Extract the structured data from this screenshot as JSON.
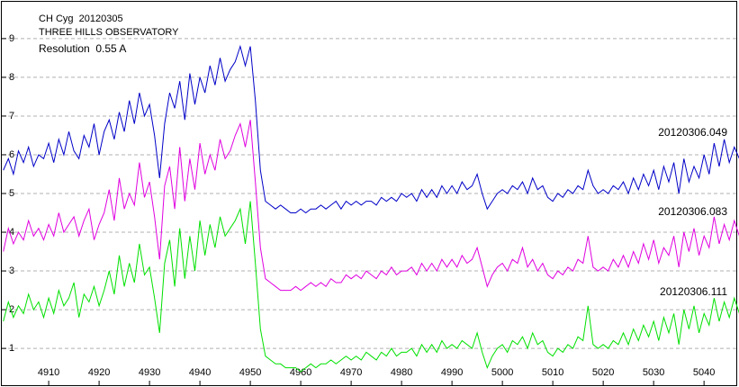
{
  "chart_data": {
    "type": "line",
    "title": "CH Cyg  20120305",
    "subtitle": "THREE HILLS OBSERVATORY",
    "annotation": "Resolution  0.55 A",
    "x": [
      4901,
      4902,
      4903,
      4904,
      4905,
      4906,
      4907,
      4908,
      4909,
      4910,
      4911,
      4912,
      4913,
      4914,
      4915,
      4916,
      4917,
      4918,
      4919,
      4920,
      4921,
      4922,
      4923,
      4924,
      4925,
      4926,
      4927,
      4928,
      4929,
      4930,
      4931,
      4932,
      4933,
      4934,
      4935,
      4936,
      4937,
      4938,
      4939,
      4940,
      4941,
      4942,
      4943,
      4944,
      4945,
      4946,
      4947,
      4948,
      4949,
      4950,
      4951,
      4952,
      4953,
      4954,
      4955,
      4956,
      4957,
      4958,
      4959,
      4960,
      4961,
      4962,
      4963,
      4964,
      4965,
      4966,
      4967,
      4968,
      4969,
      4970,
      4971,
      4972,
      4973,
      4974,
      4975,
      4976,
      4977,
      4978,
      4979,
      4980,
      4981,
      4982,
      4983,
      4984,
      4985,
      4986,
      4987,
      4988,
      4989,
      4990,
      4991,
      4992,
      4993,
      4994,
      4995,
      4996,
      4997,
      4998,
      4999,
      5000,
      5001,
      5002,
      5003,
      5004,
      5005,
      5006,
      5007,
      5008,
      5009,
      5010,
      5011,
      5012,
      5013,
      5014,
      5015,
      5016,
      5017,
      5018,
      5019,
      5020,
      5021,
      5022,
      5023,
      5024,
      5025,
      5026,
      5027,
      5028,
      5029,
      5030,
      5031,
      5032,
      5033,
      5034,
      5035,
      5036,
      5037,
      5038,
      5039,
      5040,
      5041,
      5042,
      5043,
      5044,
      5045,
      5046,
      5047
    ],
    "series": [
      {
        "name": "20120306.049",
        "color": "#0000c8",
        "values": [
          5.6,
          5.9,
          5.5,
          6.1,
          5.8,
          6.2,
          5.7,
          6.0,
          5.9,
          6.3,
          5.8,
          6.4,
          6.0,
          6.6,
          6.1,
          5.9,
          6.5,
          6.2,
          6.8,
          6.0,
          6.6,
          6.9,
          6.4,
          7.1,
          6.6,
          7.4,
          6.8,
          7.6,
          7.0,
          7.3,
          6.5,
          5.4,
          6.8,
          7.6,
          7.2,
          7.9,
          6.9,
          8.1,
          7.3,
          8.0,
          7.6,
          8.3,
          7.8,
          8.5,
          7.9,
          8.2,
          8.4,
          8.8,
          8.3,
          8.8,
          7.4,
          5.6,
          4.8,
          4.7,
          4.6,
          4.7,
          4.6,
          4.5,
          4.5,
          4.6,
          4.5,
          4.6,
          4.6,
          4.7,
          4.6,
          4.7,
          4.8,
          4.6,
          4.8,
          4.7,
          4.8,
          4.7,
          4.8,
          4.8,
          4.7,
          4.9,
          4.8,
          4.9,
          4.8,
          5.0,
          4.9,
          5.0,
          4.8,
          5.1,
          4.9,
          5.1,
          4.9,
          5.2,
          5.0,
          5.2,
          5.0,
          5.3,
          5.1,
          5.2,
          5.5,
          5.0,
          4.6,
          4.8,
          5.0,
          5.1,
          5.0,
          5.2,
          5.1,
          5.3,
          5.0,
          5.4,
          5.1,
          5.2,
          4.9,
          4.8,
          5.0,
          4.9,
          5.1,
          5.0,
          5.2,
          5.1,
          5.6,
          5.2,
          5.0,
          5.1,
          5.0,
          5.2,
          5.1,
          5.3,
          5.0,
          5.4,
          5.1,
          5.5,
          5.2,
          5.6,
          5.1,
          5.7,
          5.3,
          5.8,
          5.0,
          5.9,
          5.3,
          5.7,
          5.4,
          6.0,
          5.5,
          6.3,
          5.7,
          6.4,
          5.8,
          6.2,
          5.9
        ]
      },
      {
        "name": "20120306.083",
        "color": "#e000e0",
        "values": [
          3.5,
          4.1,
          3.7,
          4.0,
          3.8,
          4.3,
          3.9,
          4.1,
          3.8,
          4.2,
          3.9,
          4.5,
          4.0,
          4.2,
          4.4,
          3.9,
          4.3,
          4.6,
          3.8,
          4.2,
          4.5,
          5.1,
          4.3,
          5.4,
          4.6,
          5.0,
          4.7,
          5.8,
          4.9,
          5.3,
          4.4,
          3.3,
          5.2,
          5.7,
          4.6,
          6.2,
          4.8,
          5.9,
          5.1,
          6.3,
          5.5,
          6.0,
          5.6,
          6.4,
          5.9,
          6.1,
          6.5,
          6.8,
          6.2,
          6.9,
          5.3,
          3.6,
          2.8,
          2.7,
          2.6,
          2.5,
          2.5,
          2.5,
          2.6,
          2.5,
          2.6,
          2.7,
          2.6,
          2.7,
          2.6,
          2.8,
          2.7,
          2.7,
          2.9,
          2.8,
          2.9,
          2.8,
          3.0,
          2.9,
          2.8,
          3.0,
          2.9,
          3.1,
          2.9,
          3.0,
          3.0,
          3.1,
          2.9,
          3.2,
          3.0,
          3.2,
          3.0,
          3.3,
          3.1,
          3.3,
          3.1,
          3.4,
          3.2,
          3.3,
          3.6,
          3.1,
          2.6,
          2.9,
          3.1,
          3.2,
          3.0,
          3.3,
          3.2,
          3.6,
          3.1,
          3.3,
          3.0,
          3.2,
          2.9,
          2.8,
          3.0,
          2.9,
          3.1,
          3.0,
          3.3,
          3.2,
          3.9,
          3.1,
          3.0,
          3.1,
          3.0,
          3.3,
          3.1,
          3.4,
          3.1,
          3.5,
          3.2,
          3.7,
          3.3,
          3.8,
          3.2,
          3.6,
          3.4,
          3.9,
          3.1,
          4.0,
          3.5,
          4.1,
          3.4,
          3.9,
          3.6,
          4.4,
          3.7,
          4.2,
          3.8,
          4.3,
          3.9
        ]
      },
      {
        "name": "20120306.111",
        "color": "#00e000",
        "values": [
          1.7,
          2.2,
          1.8,
          2.1,
          1.9,
          2.4,
          2.0,
          2.2,
          1.8,
          2.3,
          1.9,
          2.5,
          2.1,
          2.3,
          2.7,
          1.8,
          2.4,
          2.2,
          2.6,
          2.1,
          2.5,
          3.0,
          2.4,
          3.4,
          2.6,
          3.2,
          2.7,
          3.7,
          2.9,
          3.1,
          2.3,
          1.4,
          3.2,
          3.8,
          2.6,
          4.1,
          2.8,
          3.9,
          3.0,
          4.3,
          3.4,
          4.2,
          3.6,
          4.4,
          3.9,
          4.1,
          4.3,
          4.6,
          3.7,
          4.8,
          3.2,
          1.5,
          0.8,
          0.7,
          0.6,
          0.6,
          0.5,
          0.5,
          0.5,
          0.4,
          0.5,
          0.6,
          0.5,
          0.6,
          0.6,
          0.7,
          0.6,
          0.7,
          0.8,
          0.7,
          0.8,
          0.7,
          0.9,
          0.8,
          0.7,
          0.9,
          0.8,
          1.0,
          0.8,
          0.9,
          0.9,
          1.0,
          0.8,
          1.1,
          0.9,
          1.1,
          0.9,
          1.2,
          1.0,
          1.1,
          1.0,
          1.2,
          1.1,
          1.0,
          1.4,
          0.9,
          0.5,
          0.8,
          1.0,
          1.1,
          0.9,
          1.2,
          1.1,
          1.3,
          1.0,
          1.4,
          1.1,
          1.2,
          0.9,
          0.8,
          1.0,
          0.9,
          1.1,
          1.0,
          1.3,
          1.2,
          2.1,
          1.1,
          1.0,
          1.1,
          1.0,
          1.2,
          1.1,
          1.4,
          1.1,
          1.5,
          1.2,
          1.6,
          1.3,
          1.7,
          1.2,
          1.8,
          1.4,
          1.9,
          1.1,
          2.0,
          1.5,
          2.1,
          1.4,
          1.9,
          1.6,
          2.3,
          1.7,
          2.2,
          1.8,
          2.3,
          1.9
        ]
      }
    ],
    "xlim": [
      4900.7,
      5046.4
    ],
    "ylim": [
      0.05,
      9.95
    ],
    "xticks": [
      4910,
      4920,
      4930,
      4940,
      4950,
      4960,
      4970,
      4980,
      4990,
      5000,
      5010,
      5020,
      5030,
      5040
    ],
    "yticks": [
      1,
      2,
      3,
      4,
      5,
      6,
      7,
      8,
      9
    ],
    "grid": true
  }
}
